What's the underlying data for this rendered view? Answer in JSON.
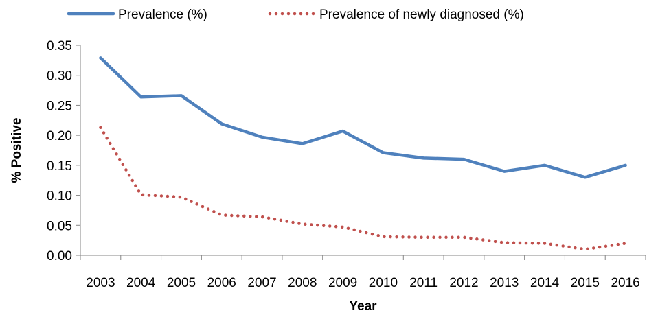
{
  "chart_data": {
    "type": "line",
    "title": "",
    "xlabel": "Year",
    "ylabel": "% Positive",
    "categories": [
      "2003",
      "2004",
      "2005",
      "2006",
      "2007",
      "2008",
      "2009",
      "2010",
      "2011",
      "2012",
      "2013",
      "2014",
      "2015",
      "2016"
    ],
    "ylim": [
      0,
      0.35
    ],
    "yticks": [
      "0.00",
      "0.05",
      "0.10",
      "0.15",
      "0.20",
      "0.25",
      "0.30",
      "0.35"
    ],
    "grid": false,
    "legend_position": "top",
    "series": [
      {
        "name": "Prevalence (%)",
        "style": "solid",
        "color": "#4f81bd",
        "values": [
          0.329,
          0.264,
          0.266,
          0.219,
          0.197,
          0.186,
          0.207,
          0.171,
          0.162,
          0.16,
          0.14,
          0.15,
          0.13,
          0.15
        ]
      },
      {
        "name": "Prevalence of newly diagnosed (%)",
        "style": "dotted",
        "color": "#c0504d",
        "values": [
          0.213,
          0.101,
          0.097,
          0.067,
          0.064,
          0.052,
          0.047,
          0.031,
          0.03,
          0.03,
          0.021,
          0.02,
          0.01,
          0.02
        ]
      }
    ]
  }
}
